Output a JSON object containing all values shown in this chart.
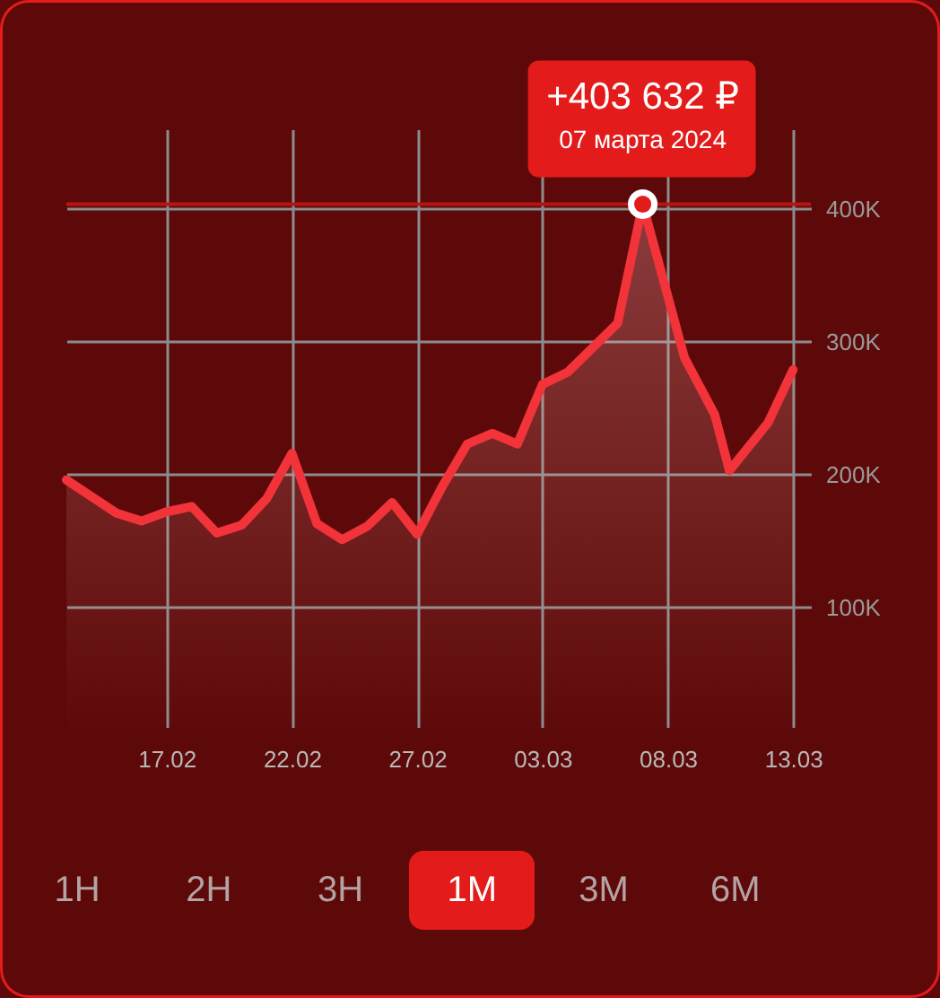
{
  "chart_data": {
    "type": "area",
    "x": [
      "2024-02-13",
      "2024-02-15",
      "2024-02-16",
      "2024-02-17",
      "2024-02-18",
      "2024-02-19",
      "2024-02-20",
      "2024-02-21",
      "2024-02-22",
      "2024-02-23",
      "2024-02-24",
      "2024-02-25",
      "2024-02-26",
      "2024-02-27",
      "2024-02-28",
      "2024-02-29",
      "2024-03-01",
      "2024-03-02",
      "2024-03-03",
      "2024-03-04",
      "2024-03-06",
      "2024-03-07",
      "2024-03-08T16:00",
      "2024-03-09T21:00",
      "2024-03-10T11:00",
      "2024-03-12",
      "2024-03-13"
    ],
    "values": [
      196000,
      171000,
      165000,
      172000,
      176000,
      156000,
      162000,
      182000,
      216000,
      163000,
      151000,
      161000,
      179000,
      155000,
      191000,
      223000,
      231000,
      223000,
      268000,
      277000,
      314000,
      403632,
      288000,
      245000,
      203000,
      239000,
      279000
    ],
    "color": "#f2333a",
    "line_style": "solid",
    "grid": true,
    "xlim": [
      "2024-02-13",
      "2024-03-13T17:00"
    ],
    "xticks": [
      {
        "value": "2024-02-17",
        "label": "17.02"
      },
      {
        "value": "2024-02-22",
        "label": "22.02"
      },
      {
        "value": "2024-02-27",
        "label": "27.02"
      },
      {
        "value": "2024-03-03",
        "label": "03.03"
      },
      {
        "value": "2024-03-08",
        "label": "08.03"
      },
      {
        "value": "2024-03-13",
        "label": "13.03"
      }
    ],
    "ylim": [
      10000,
      460000
    ],
    "yticks": [
      {
        "value": 100000,
        "label": "100K"
      },
      {
        "value": 200000,
        "label": "200K"
      },
      {
        "value": 300000,
        "label": "300K"
      },
      {
        "value": 400000,
        "label": "400K"
      }
    ],
    "ref_lines": [
      {
        "axis": "y",
        "value": 403632,
        "color": "#b81414"
      }
    ],
    "annotations": [
      {
        "text": "+403 632 ₽",
        "x": "2024-03-07",
        "y": 403632
      },
      {
        "text": "07 марта 2024",
        "x": "2024-03-07",
        "y": 403632
      },
      "1Н",
      "2Н",
      "3Н",
      "1М",
      "3М",
      "6М"
    ]
  }
}
